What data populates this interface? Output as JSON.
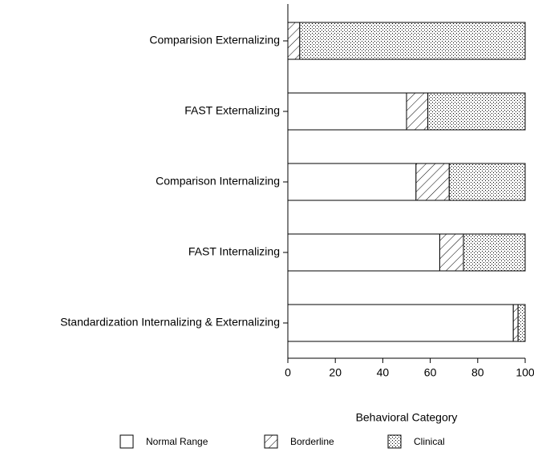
{
  "chart_data": {
    "type": "stacked-barh",
    "categories": [
      "Comparision Externalizing",
      "FAST Externalizing",
      "Comparison Internalizing",
      "FAST Internalizing",
      "Standardization Internalizing & Externalizing"
    ],
    "series": [
      {
        "name": "Normal Range",
        "color": "#ffffff",
        "pattern": "solid",
        "values": [
          0,
          50,
          54,
          64,
          95
        ]
      },
      {
        "name": "Borderline",
        "color": "#000000",
        "pattern": "hatch",
        "values": [
          5,
          9,
          14,
          10,
          2
        ]
      },
      {
        "name": "Clinical",
        "color": "#000000",
        "pattern": "dots",
        "values": [
          95,
          41,
          32,
          26,
          3
        ]
      }
    ],
    "xlabel": "Behavioral Category",
    "xlim": [
      0,
      100
    ],
    "xticks": [
      0,
      20,
      40,
      60,
      80,
      100
    ],
    "legend": "bottom"
  }
}
